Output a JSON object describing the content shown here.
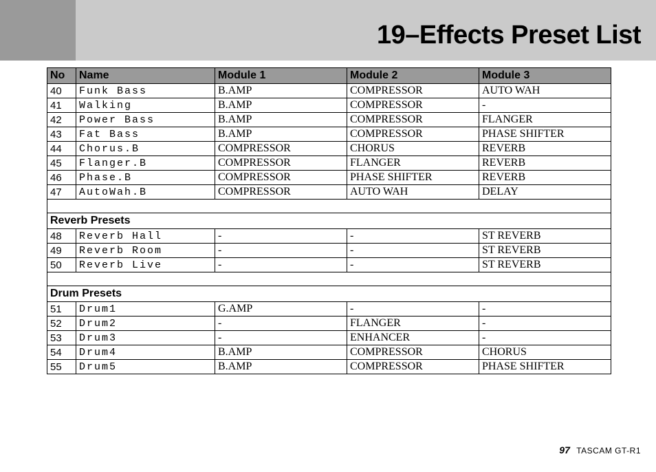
{
  "title": "19–Effects Preset List",
  "columns": [
    "No",
    "Name",
    "Module 1",
    "Module 2",
    "Module 3"
  ],
  "sections": [
    {
      "heading": null,
      "rows": [
        {
          "no": "40",
          "name": "Funk Bass",
          "m1": "B.AMP",
          "m2": "COMPRESSOR",
          "m3": "AUTO WAH"
        },
        {
          "no": "41",
          "name": "Walking",
          "m1": "B.AMP",
          "m2": "COMPRESSOR",
          "m3": "-"
        },
        {
          "no": "42",
          "name": "Power Bass",
          "m1": "B.AMP",
          "m2": "COMPRESSOR",
          "m3": "FLANGER"
        },
        {
          "no": "43",
          "name": "Fat Bass",
          "m1": "B.AMP",
          "m2": "COMPRESSOR",
          "m3": "PHASE SHIFTER"
        },
        {
          "no": "44",
          "name": "Chorus.B",
          "m1": "COMPRESSOR",
          "m2": "CHORUS",
          "m3": "REVERB"
        },
        {
          "no": "45",
          "name": "Flanger.B",
          "m1": "COMPRESSOR",
          "m2": "FLANGER",
          "m3": "REVERB"
        },
        {
          "no": "46",
          "name": "Phase.B",
          "m1": "COMPRESSOR",
          "m2": "PHASE SHIFTER",
          "m3": "REVERB"
        },
        {
          "no": "47",
          "name": "AutoWah.B",
          "m1": "COMPRESSOR",
          "m2": "AUTO WAH",
          "m3": "DELAY"
        }
      ]
    },
    {
      "heading": "Reverb Presets",
      "rows": [
        {
          "no": "48",
          "name": "Reverb Hall",
          "m1": "-",
          "m2": "-",
          "m3": "ST REVERB"
        },
        {
          "no": "49",
          "name": "Reverb Room",
          "m1": "-",
          "m2": "-",
          "m3": "ST REVERB"
        },
        {
          "no": "50",
          "name": "Reverb Live",
          "m1": "-",
          "m2": "-",
          "m3": "ST REVERB"
        }
      ]
    },
    {
      "heading": "Drum Presets",
      "rows": [
        {
          "no": "51",
          "name": "Drum1",
          "m1": "G.AMP",
          "m2": "-",
          "m3": "-"
        },
        {
          "no": "52",
          "name": "Drum2",
          "m1": "-",
          "m2": "FLANGER",
          "m3": "-"
        },
        {
          "no": "53",
          "name": "Drum3",
          "m1": "-",
          "m2": "ENHANCER",
          "m3": "-"
        },
        {
          "no": "54",
          "name": "Drum4",
          "m1": "B.AMP",
          "m2": "COMPRESSOR",
          "m3": "CHORUS"
        },
        {
          "no": "55",
          "name": "Drum5",
          "m1": "B.AMP",
          "m2": "COMPRESSOR",
          "m3": "PHASE SHIFTER"
        }
      ]
    }
  ],
  "footer": {
    "page": "97",
    "device": "TASCAM  GT-R1"
  },
  "colors": {
    "header_band": "#cacaca",
    "side_band": "#9a9a9a",
    "th_bg": "#9a9a9a",
    "border": "#000000",
    "text": "#000000",
    "background": "#ffffff"
  }
}
